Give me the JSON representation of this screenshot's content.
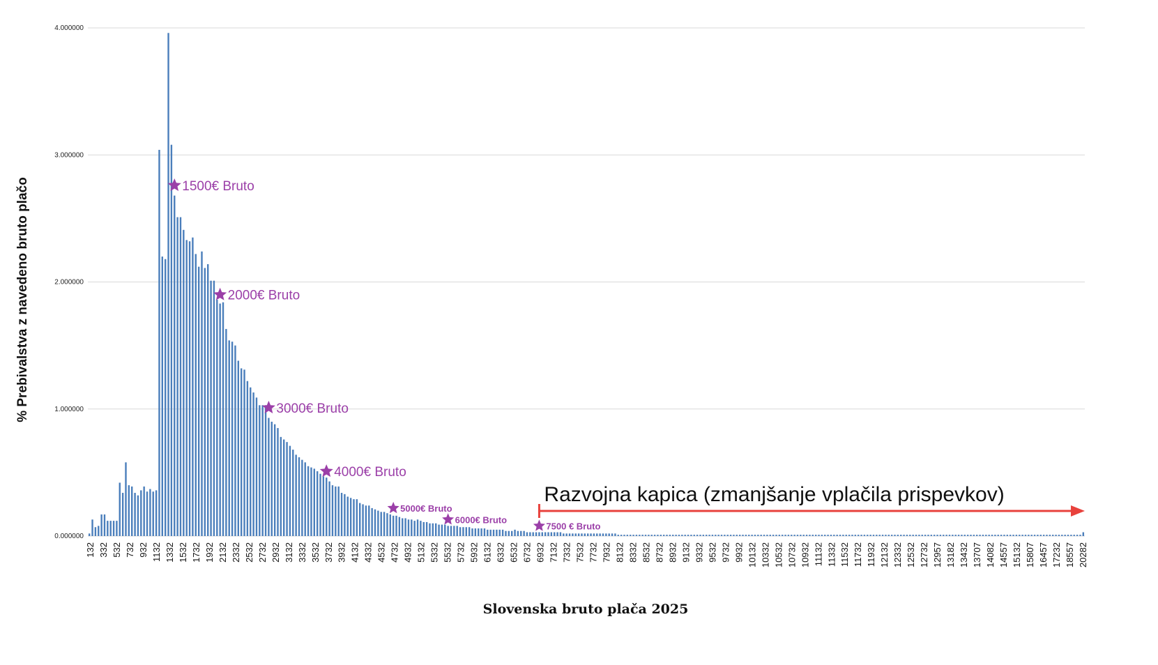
{
  "chart_data": {
    "type": "bar",
    "title": "",
    "xlabel": "Slovenska bruto plača 2025",
    "ylabel": "% Prebivalstva z navedeno bruto plačo",
    "ylim": [
      0,
      4
    ],
    "yticks": [
      "0.000000",
      "1.000000",
      "2.000000",
      "3.000000",
      "4.000000"
    ],
    "grid": true,
    "legend": "none",
    "bar_color": "#4a7ebb",
    "xtick_labels": [
      "132",
      "332",
      "532",
      "732",
      "932",
      "1132",
      "1332",
      "1532",
      "1732",
      "1932",
      "2132",
      "2332",
      "2532",
      "2732",
      "2932",
      "3132",
      "3332",
      "3532",
      "3732",
      "3932",
      "4132",
      "4332",
      "4532",
      "4732",
      "4932",
      "5132",
      "5332",
      "5532",
      "5732",
      "5932",
      "6132",
      "6332",
      "6532",
      "6732",
      "6932",
      "7132",
      "7332",
      "7532",
      "7732",
      "7932",
      "8132",
      "8332",
      "8532",
      "8732",
      "8932",
      "9132",
      "9332",
      "9532",
      "9732",
      "9932",
      "10132",
      "10332",
      "10532",
      "10732",
      "10932",
      "11132",
      "11332",
      "11532",
      "11732",
      "11932",
      "12132",
      "12332",
      "12532",
      "12732",
      "12957",
      "13182",
      "13432",
      "13707",
      "14082",
      "14557",
      "15132",
      "15807",
      "16457",
      "17232",
      "18557",
      "20282"
    ],
    "values": [
      0.02,
      0.13,
      0.07,
      0.08,
      0.17,
      0.17,
      0.12,
      0.12,
      0.12,
      0.12,
      0.42,
      0.34,
      0.58,
      0.4,
      0.39,
      0.34,
      0.32,
      0.36,
      0.39,
      0.35,
      0.37,
      0.35,
      0.36,
      3.04,
      2.2,
      2.18,
      3.96,
      3.08,
      2.68,
      2.51,
      2.51,
      2.41,
      2.33,
      2.32,
      2.35,
      2.22,
      2.12,
      2.24,
      2.11,
      2.14,
      2.01,
      2.01,
      1.86,
      1.83,
      1.84,
      1.63,
      1.54,
      1.53,
      1.5,
      1.38,
      1.32,
      1.31,
      1.22,
      1.17,
      1.13,
      1.09,
      1.03,
      1.03,
      1.03,
      0.93,
      0.9,
      0.88,
      0.85,
      0.78,
      0.76,
      0.74,
      0.71,
      0.68,
      0.64,
      0.62,
      0.6,
      0.58,
      0.55,
      0.54,
      0.53,
      0.51,
      0.49,
      0.47,
      0.46,
      0.43,
      0.4,
      0.39,
      0.39,
      0.34,
      0.33,
      0.31,
      0.3,
      0.29,
      0.29,
      0.26,
      0.25,
      0.24,
      0.24,
      0.22,
      0.21,
      0.2,
      0.19,
      0.19,
      0.18,
      0.17,
      0.16,
      0.16,
      0.15,
      0.14,
      0.14,
      0.13,
      0.13,
      0.12,
      0.13,
      0.12,
      0.11,
      0.11,
      0.1,
      0.1,
      0.1,
      0.09,
      0.09,
      0.09,
      0.08,
      0.08,
      0.08,
      0.08,
      0.07,
      0.07,
      0.07,
      0.07,
      0.06,
      0.06,
      0.06,
      0.06,
      0.06,
      0.05,
      0.05,
      0.05,
      0.05,
      0.05,
      0.05,
      0.04,
      0.04,
      0.04,
      0.05,
      0.04,
      0.04,
      0.04,
      0.03,
      0.03,
      0.03,
      0.03,
      0.03,
      0.03,
      0.03,
      0.03,
      0.03,
      0.03,
      0.03,
      0.03,
      0.02,
      0.02,
      0.02,
      0.02,
      0.02,
      0.02,
      0.02,
      0.02,
      0.02,
      0.02,
      0.02,
      0.02,
      0.02,
      0.02,
      0.02,
      0.02,
      0.02,
      0.02,
      0.01,
      0.01,
      0.01,
      0.01,
      0.01,
      0.01,
      0.01,
      0.01,
      0.01,
      0.01,
      0.01,
      0.01,
      0.01,
      0.01,
      0.01,
      0.01,
      0.01,
      0.01,
      0.01,
      0.01,
      0.01,
      0.01,
      0.01,
      0.01,
      0.01,
      0.01,
      0.01,
      0.01,
      0.01,
      0.01,
      0.01,
      0.01,
      0.01,
      0.01,
      0.01,
      0.01,
      0.01,
      0.01,
      0.01,
      0.01,
      0.01,
      0.01,
      0.01,
      0.01,
      0.01,
      0.01,
      0.01,
      0.01,
      0.01,
      0.01,
      0.01,
      0.01,
      0.01,
      0.01,
      0.01,
      0.01,
      0.01,
      0.01,
      0.01,
      0.01,
      0.01,
      0.01,
      0.01,
      0.01,
      0.01,
      0.01,
      0.01,
      0.01,
      0.01,
      0.01,
      0.01,
      0.01,
      0.01,
      0.01,
      0.01,
      0.01,
      0.01,
      0.01,
      0.01,
      0.01,
      0.01,
      0.01,
      0.01,
      0.01,
      0.01,
      0.01,
      0.01,
      0.01,
      0.01,
      0.01,
      0.01,
      0.01,
      0.01,
      0.01,
      0.01,
      0.01,
      0.01,
      0.01,
      0.01,
      0.01,
      0.01,
      0.01,
      0.01,
      0.01,
      0.01,
      0.01,
      0.01,
      0.01,
      0.01,
      0.01,
      0.01,
      0.01,
      0.01,
      0.01,
      0.01,
      0.01,
      0.01,
      0.01,
      0.01,
      0.01,
      0.01,
      0.01,
      0.01,
      0.01,
      0.01,
      0.01,
      0.01,
      0.01,
      0.01,
      0.01,
      0.01,
      0.01,
      0.01,
      0.01,
      0.01,
      0.01,
      0.01,
      0.01,
      0.01,
      0.01,
      0.01,
      0.01,
      0.01,
      0.01,
      0.01,
      0.01,
      0.01,
      0.01,
      0.01,
      0.01,
      0.01,
      0.01,
      0.01,
      0.03
    ],
    "annotations": [
      {
        "text": "1500€ Bruto",
        "bar_index": 28,
        "y": 2.76,
        "size": "large"
      },
      {
        "text": "2000€ Bruto",
        "bar_index": 43,
        "y": 1.9,
        "size": "large"
      },
      {
        "text": "3000€ Bruto",
        "bar_index": 59,
        "y": 1.01,
        "size": "large"
      },
      {
        "text": "4000€ Bruto",
        "bar_index": 78,
        "y": 0.51,
        "size": "large"
      },
      {
        "text": "5000€ Bruto",
        "bar_index": 100,
        "y": 0.22,
        "size": "small"
      },
      {
        "text": "6000€ Bruto",
        "bar_index": 118,
        "y": 0.13,
        "size": "small"
      },
      {
        "text": "7500 € Bruto",
        "bar_index": 148,
        "y": 0.08,
        "size": "small"
      }
    ],
    "annotation_color": "#9b3fa8",
    "cap_annotation": {
      "text": "Razvojna kapica (zmanjšanje vplačila prispevkov)",
      "start_bar_index": 148,
      "color": "#e8413c"
    }
  }
}
